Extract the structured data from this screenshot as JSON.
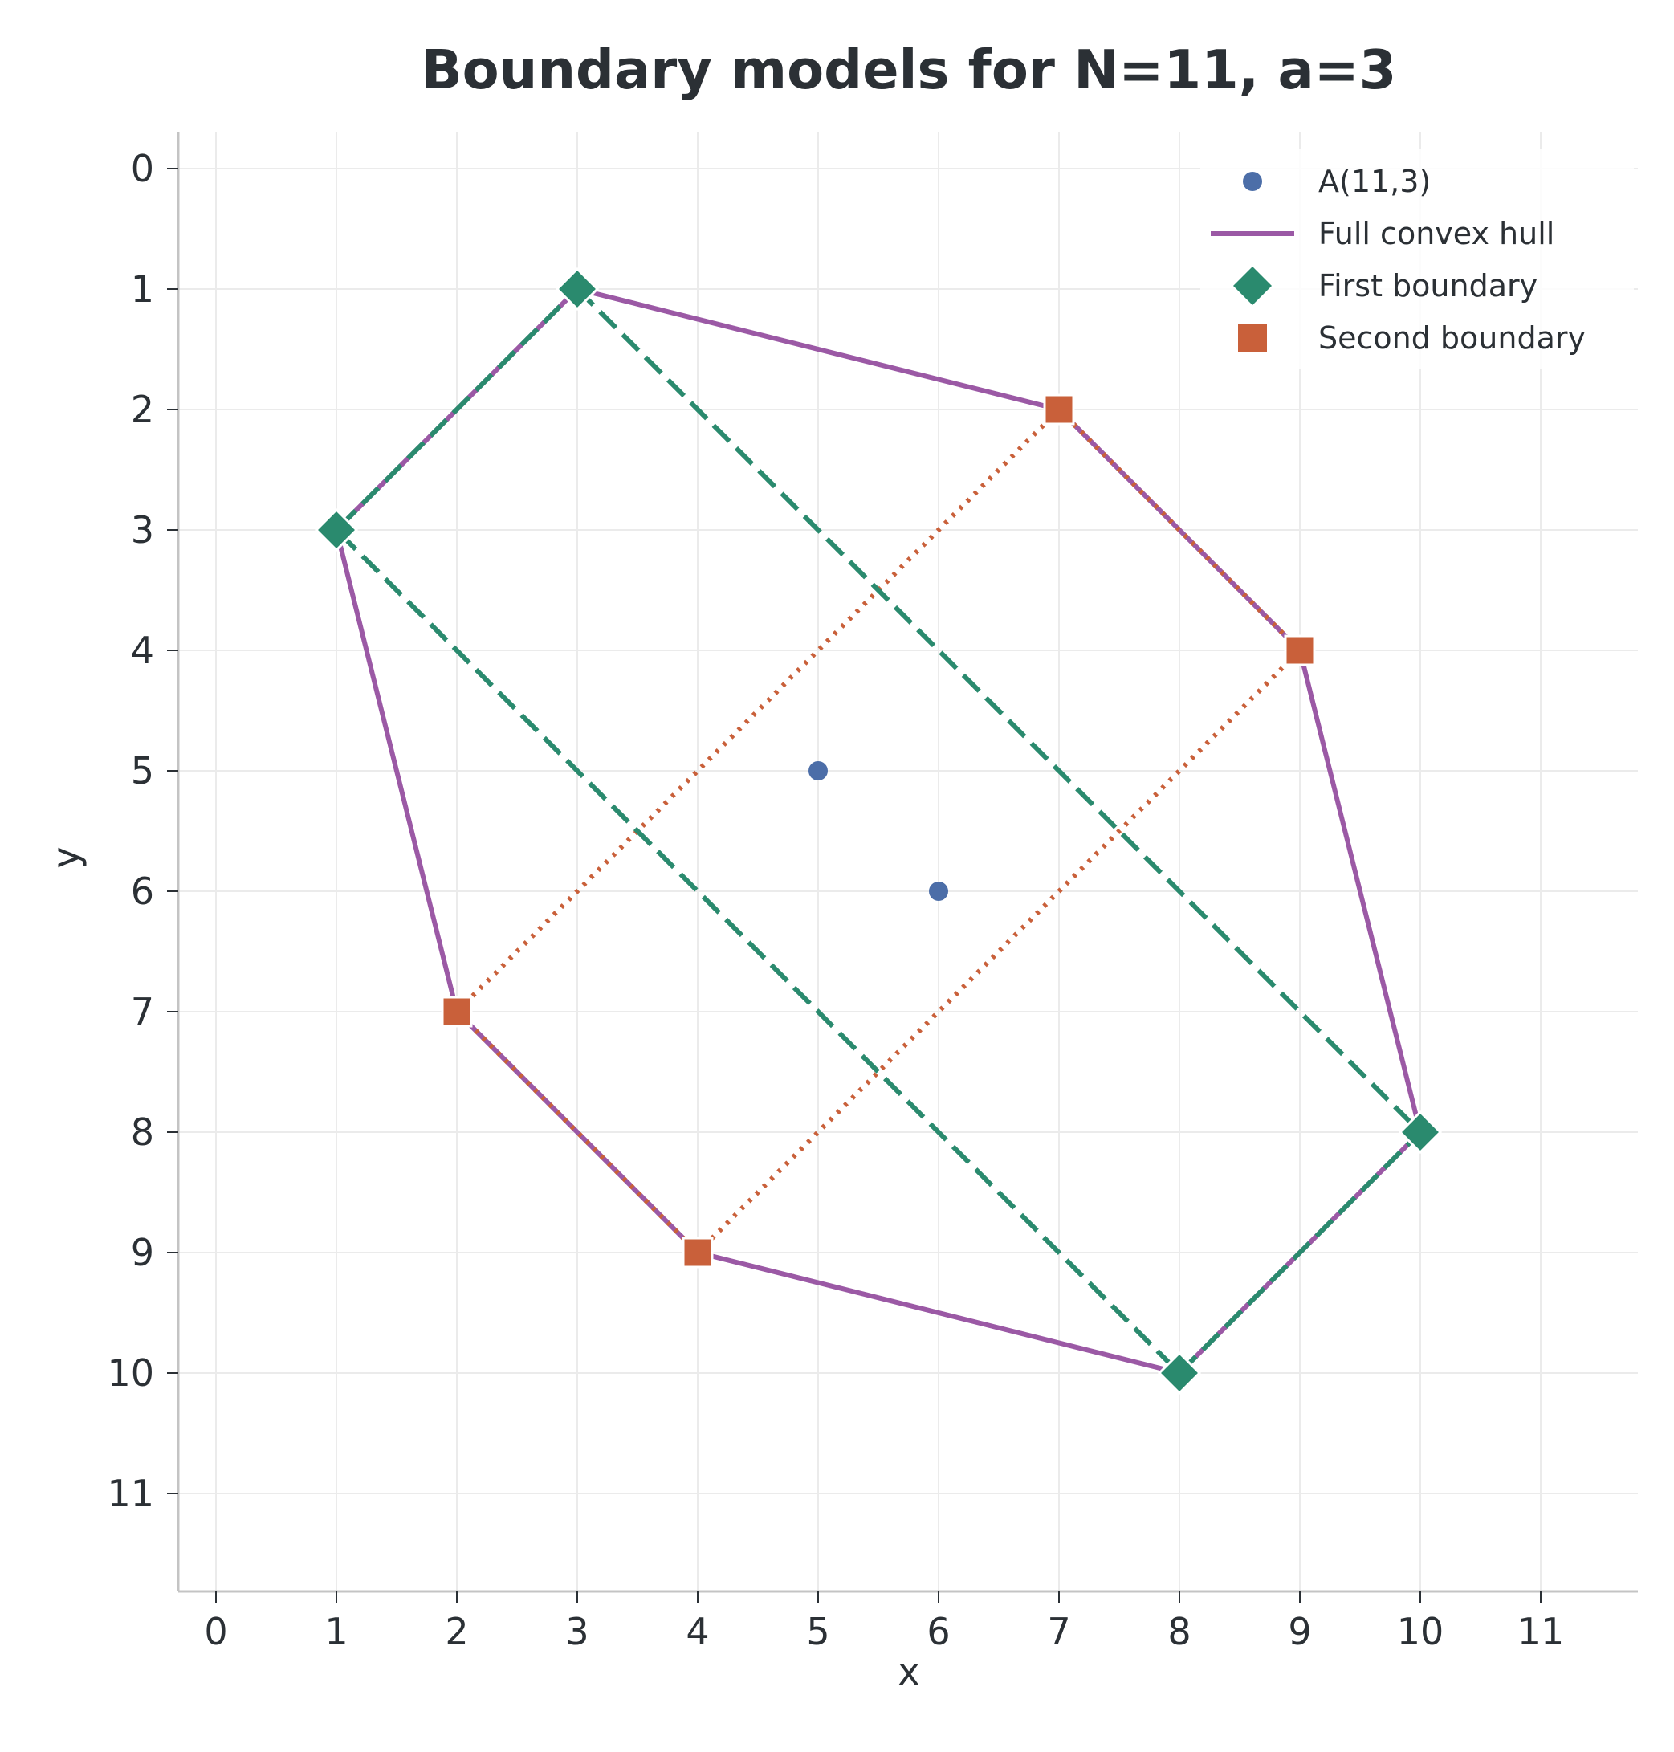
{
  "chart_data": {
    "type": "scatter",
    "title": "Boundary models for N=11, a=3",
    "xlabel": "x",
    "ylabel": "y",
    "xlim": [
      -0.3,
      11.8
    ],
    "ylim": [
      11.8,
      -0.3
    ],
    "y_inverted": true,
    "x_ticks": [
      0,
      1,
      2,
      3,
      4,
      5,
      6,
      7,
      8,
      9,
      10,
      11
    ],
    "y_ticks": [
      0,
      1,
      2,
      3,
      4,
      5,
      6,
      7,
      8,
      9,
      10,
      11
    ],
    "grid": true,
    "legend_position": "top-right",
    "colors": {
      "points": "#4c6ea8",
      "hull": "#9b59a5",
      "first": "#2a8a6e",
      "second": "#c9603a",
      "grid": "#ebebeb",
      "axis": "#c4c4c4",
      "text": "#2b3035"
    },
    "series": [
      {
        "name": "A(11,3)",
        "kind": "points",
        "marker": "circle",
        "points": [
          [
            5,
            5
          ],
          [
            6,
            6
          ]
        ]
      },
      {
        "name": "Full convex hull",
        "kind": "polygon",
        "line": "solid",
        "points": [
          [
            3,
            1
          ],
          [
            7,
            2
          ],
          [
            9,
            4
          ],
          [
            10,
            8
          ],
          [
            8,
            10
          ],
          [
            4,
            9
          ],
          [
            2,
            7
          ],
          [
            1,
            3
          ]
        ]
      },
      {
        "name": "First boundary",
        "kind": "polygon",
        "line": "dashed",
        "marker": "diamond",
        "points": [
          [
            3,
            1
          ],
          [
            10,
            8
          ],
          [
            8,
            10
          ],
          [
            1,
            3
          ]
        ]
      },
      {
        "name": "Second boundary",
        "kind": "polygon",
        "line": "dotted",
        "marker": "square",
        "points": [
          [
            7,
            2
          ],
          [
            9,
            4
          ],
          [
            4,
            9
          ],
          [
            2,
            7
          ]
        ]
      }
    ]
  }
}
